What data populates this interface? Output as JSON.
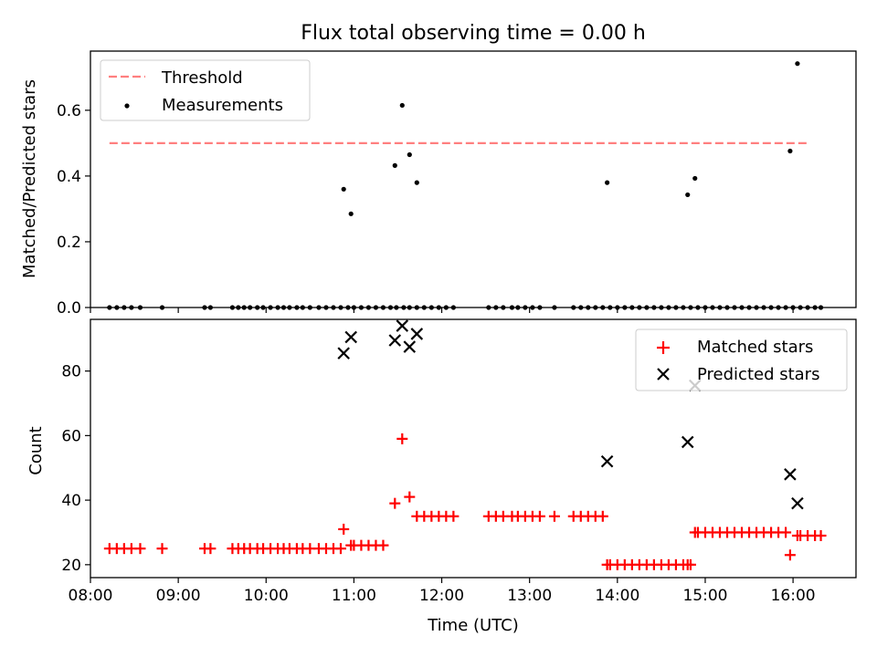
{
  "title": "Flux total observing time = 0.00 h",
  "xlabel": "Time (UTC)",
  "colors": {
    "threshold": "#ff7f7f",
    "measurement": "#000000",
    "matched": "#ff0000",
    "predicted": "#000000"
  },
  "chart_data": [
    {
      "type": "scatter",
      "panel": "top",
      "title": "Flux total observing time = 0.00 h",
      "ylabel": "Matched/Predicted stars",
      "xlim": [
        "08:00",
        "16:43"
      ],
      "ylim": [
        0,
        0.78
      ],
      "yticks": [
        0.0,
        0.2,
        0.4,
        0.6
      ],
      "ytick_labels": [
        "0.0",
        "0.2",
        "0.4",
        "0.6"
      ],
      "legend": "top-left",
      "grid": false,
      "threshold": {
        "name": "Threshold",
        "value": 0.5,
        "x_range": [
          "08:13",
          "16:10"
        ]
      },
      "series": [
        {
          "name": "Measurements",
          "x": [
            "08:13",
            "08:18",
            "08:23",
            "08:28",
            "08:34",
            "08:49",
            "09:18",
            "09:22",
            "09:37",
            "09:41",
            "09:45",
            "09:49",
            "09:54",
            "09:58",
            "10:03",
            "10:08",
            "10:12",
            "10:16",
            "10:21",
            "10:25",
            "10:30",
            "10:36",
            "10:41",
            "10:46",
            "10:51",
            "10:56",
            "11:00",
            "11:05",
            "11:10",
            "11:15",
            "11:20",
            "11:25",
            "11:29",
            "11:34",
            "11:38",
            "11:43",
            "11:48",
            "11:53",
            "11:58",
            "12:03",
            "12:08",
            "12:32",
            "12:37",
            "12:42",
            "12:48",
            "12:52",
            "12:57",
            "13:02",
            "13:07",
            "13:17",
            "13:30",
            "13:35",
            "13:40",
            "13:45",
            "13:50",
            "13:55",
            "14:00",
            "14:05",
            "14:10",
            "14:15",
            "14:20",
            "14:25",
            "14:30",
            "14:35",
            "14:40",
            "14:45",
            "14:50",
            "14:55",
            "15:00",
            "15:05",
            "15:10",
            "15:15",
            "15:20",
            "15:25",
            "15:30",
            "15:35",
            "15:40",
            "15:45",
            "15:50",
            "15:55",
            "16:00",
            "16:05",
            "16:10",
            "16:15",
            "16:19",
            "10:53",
            "10:58",
            "11:28",
            "11:33",
            "11:38",
            "11:43",
            "13:53",
            "14:48",
            "14:53",
            "15:58",
            "16:03"
          ],
          "y": [
            0,
            0,
            0,
            0,
            0,
            0,
            0,
            0,
            0,
            0,
            0,
            0,
            0,
            0,
            0,
            0,
            0,
            0,
            0,
            0,
            0,
            0,
            0,
            0,
            0,
            0,
            0,
            0,
            0,
            0,
            0,
            0,
            0,
            0,
            0,
            0,
            0,
            0,
            0,
            0,
            0,
            0,
            0,
            0,
            0,
            0,
            0,
            0,
            0,
            0,
            0,
            0,
            0,
            0,
            0,
            0,
            0,
            0,
            0,
            0,
            0,
            0,
            0,
            0,
            0,
            0,
            0,
            0,
            0,
            0,
            0,
            0,
            0,
            0,
            0,
            0,
            0,
            0,
            0,
            0,
            0,
            0,
            0,
            0,
            0,
            0.36,
            0.285,
            0.432,
            0.615,
            0.465,
            0.38,
            0.38,
            0.343,
            0.393,
            0.476,
            0.742
          ]
        }
      ]
    },
    {
      "type": "scatter",
      "panel": "bottom",
      "xlabel": "Time (UTC)",
      "ylabel": "Count",
      "xlim": [
        "08:00",
        "16:43"
      ],
      "ylim": [
        16,
        96
      ],
      "xticks": [
        "08:00",
        "09:00",
        "10:00",
        "11:00",
        "12:00",
        "13:00",
        "14:00",
        "15:00",
        "16:00"
      ],
      "yticks": [
        20,
        40,
        60,
        80
      ],
      "ytick_labels": [
        "20",
        "40",
        "60",
        "80"
      ],
      "legend": "top-right",
      "grid": false,
      "series": [
        {
          "name": "Matched stars",
          "marker": "+",
          "x": [
            "08:13",
            "08:18",
            "08:23",
            "08:28",
            "08:34",
            "08:49",
            "09:18",
            "09:22",
            "09:37",
            "09:41",
            "09:45",
            "09:49",
            "09:54",
            "09:58",
            "10:03",
            "10:08",
            "10:12",
            "10:16",
            "10:21",
            "10:25",
            "10:30",
            "10:36",
            "10:41",
            "10:46",
            "10:51",
            "10:53",
            "10:58",
            "11:00",
            "11:05",
            "11:10",
            "11:15",
            "11:20",
            "11:28",
            "11:33",
            "11:38",
            "11:43",
            "11:48",
            "11:53",
            "11:58",
            "12:03",
            "12:08",
            "12:32",
            "12:37",
            "12:42",
            "12:48",
            "12:52",
            "12:57",
            "13:02",
            "13:07",
            "13:17",
            "13:30",
            "13:35",
            "13:40",
            "13:45",
            "13:50",
            "13:53",
            "13:55",
            "14:00",
            "14:05",
            "14:10",
            "14:15",
            "14:20",
            "14:25",
            "14:30",
            "14:35",
            "14:40",
            "14:45",
            "14:48",
            "14:50",
            "14:53",
            "14:55",
            "15:00",
            "15:05",
            "15:10",
            "15:15",
            "15:20",
            "15:25",
            "15:30",
            "15:35",
            "15:40",
            "15:45",
            "15:50",
            "15:55",
            "15:58",
            "16:03",
            "16:05",
            "16:10",
            "16:15",
            "16:19"
          ],
          "y": [
            25,
            25,
            25,
            25,
            25,
            25,
            25,
            25,
            25,
            25,
            25,
            25,
            25,
            25,
            25,
            25,
            25,
            25,
            25,
            25,
            25,
            25,
            25,
            25,
            25,
            31,
            26,
            26,
            26,
            26,
            26,
            26,
            39,
            59,
            41,
            35,
            35,
            35,
            35,
            35,
            35,
            35,
            35,
            35,
            35,
            35,
            35,
            35,
            35,
            35,
            35,
            35,
            35,
            35,
            35,
            20,
            20,
            20,
            20,
            20,
            20,
            20,
            20,
            20,
            20,
            20,
            20,
            20,
            20,
            30,
            30,
            30,
            30,
            30,
            30,
            30,
            30,
            30,
            30,
            30,
            30,
            30,
            30,
            23,
            29,
            29,
            29,
            29,
            29
          ]
        },
        {
          "name": "Predicted stars",
          "marker": "x",
          "x": [
            "10:53",
            "10:58",
            "11:28",
            "11:33",
            "11:38",
            "11:43",
            "13:53",
            "14:48",
            "14:53",
            "15:58",
            "16:03"
          ],
          "y": [
            85.5,
            90.5,
            89.5,
            94,
            87.5,
            91.5,
            52,
            58,
            75.5,
            48,
            39
          ]
        }
      ]
    }
  ]
}
